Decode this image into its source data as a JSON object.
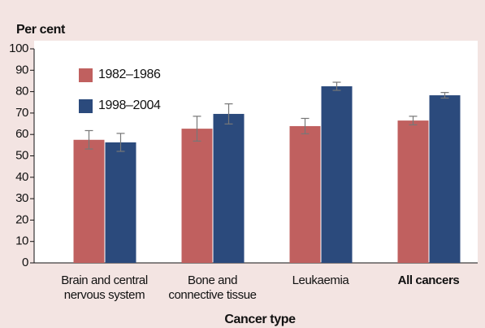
{
  "chart_data": {
    "type": "bar",
    "y_label": "Per cent",
    "x_label": "Cancer type",
    "categories": [
      "Brain and central\nnervous system",
      "Bone and\nconnective tissue",
      "Leukaemia",
      "All cancers"
    ],
    "bold_categories": [
      false,
      false,
      false,
      true
    ],
    "series": [
      {
        "name": "1982–1986",
        "color": "#c0605f",
        "values": [
          57.5,
          62.7,
          63.9,
          66.5
        ],
        "errors": [
          4.3,
          5.8,
          3.6,
          2
        ]
      },
      {
        "name": "1998–2004",
        "color": "#2b4a7c",
        "values": [
          56.3,
          69.6,
          82.5,
          78.3
        ],
        "errors": [
          4.2,
          4.7,
          1.9,
          1.3
        ]
      }
    ],
    "ylim": [
      0,
      100
    ],
    "yticks": [
      0,
      10,
      20,
      30,
      40,
      50,
      60,
      70,
      80,
      90,
      100
    ],
    "grid": false,
    "legend": "top-left"
  }
}
